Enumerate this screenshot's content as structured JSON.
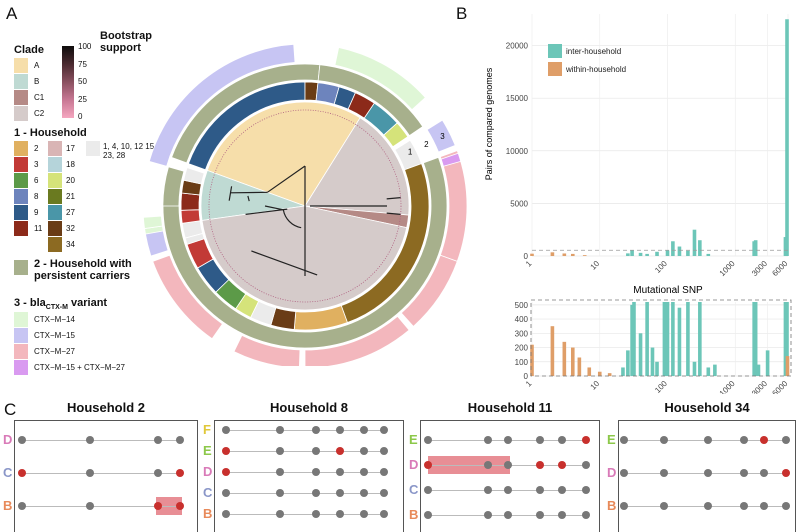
{
  "panels": {
    "a": "A",
    "b": "B",
    "c": "C"
  },
  "legend": {
    "clade_title": "Clade",
    "clades": [
      {
        "label": "A",
        "color": "#f6deaa"
      },
      {
        "label": "B",
        "color": "#bfdad3"
      },
      {
        "label": "C1",
        "color": "#b58a86"
      },
      {
        "label": "C2",
        "color": "#d5cbca"
      }
    ],
    "bootstrap_title": "Bootstrap support",
    "bootstrap_ticks": [
      "100",
      "75",
      "50",
      "25",
      "0"
    ],
    "household_title": "1 - Household",
    "households_left": [
      {
        "label": "2",
        "color": "#e0b060"
      },
      {
        "label": "3",
        "color": "#c23a36"
      },
      {
        "label": "6",
        "color": "#5c9a48"
      },
      {
        "label": "8",
        "color": "#6d84bd"
      },
      {
        "label": "9",
        "color": "#2e5a88"
      },
      {
        "label": "11",
        "color": "#8c2a1a"
      }
    ],
    "households_right": [
      {
        "label": "17",
        "color": "#d9b5b5"
      },
      {
        "label": "18",
        "color": "#b5d4da"
      },
      {
        "label": "20",
        "color": "#d5e37a"
      },
      {
        "label": "21",
        "color": "#6a7a20"
      },
      {
        "label": "27",
        "color": "#4a96a8"
      },
      {
        "label": "32",
        "color": "#6a3c16"
      },
      {
        "label": "34",
        "color": "#8c6a22"
      }
    ],
    "household_other": {
      "label": "1, 4, 10, 12 15, 23, 28",
      "color": "#ebebeb"
    },
    "persistent_label": "2 - Household with persistent carriers",
    "persistent_color": "#a7b08c",
    "variant_title": "3 - bla",
    "variant_sub": "CTX-M",
    "variant_title_tail": " variant",
    "variants": [
      {
        "label": "CTX−M−14",
        "color": "#dff6d6"
      },
      {
        "label": "CTX−M−15",
        "color": "#c7c5f3"
      },
      {
        "label": "CTX−M−27",
        "color": "#f3b7bd"
      },
      {
        "label": "CTX−M−15 + CTX−M−27",
        "color": "#d99af0"
      }
    ],
    "ring_labels": [
      "1",
      "2",
      "3"
    ]
  },
  "chart_data": [
    {
      "type": "bar",
      "title": "",
      "xlabel": "Mutational SNP",
      "ylabel": "Pairs of compared genomes",
      "x_scale": "log",
      "x_ticks": [
        "1",
        "10",
        "100",
        "1000",
        "3000",
        "6000"
      ],
      "y_ticks": [
        "0",
        "5000",
        "10000",
        "15000",
        "20000"
      ],
      "ylim": [
        0,
        23000
      ],
      "legend_position": "top-left",
      "series": [
        {
          "name": "inter-household",
          "color": "#6cc6b8",
          "points": [
            [
              26,
              250
            ],
            [
              30,
              550
            ],
            [
              40,
              300
            ],
            [
              50,
              200
            ],
            [
              70,
              400
            ],
            [
              100,
              520
            ],
            [
              120,
              1400
            ],
            [
              150,
              900
            ],
            [
              200,
              500
            ],
            [
              250,
              2500
            ],
            [
              300,
              1500
            ],
            [
              400,
              200
            ],
            [
              1900,
              1400
            ],
            [
              2000,
              1500
            ],
            [
              5500,
              1800
            ],
            [
              5800,
              22500
            ]
          ]
        },
        {
          "name": "within-household",
          "color": "#df9e68",
          "points": [
            [
              1,
              220
            ],
            [
              2,
              350
            ],
            [
              3,
              240
            ],
            [
              4,
              200
            ],
            [
              6,
              80
            ]
          ]
        }
      ]
    },
    {
      "type": "bar",
      "title": "",
      "xlabel": "",
      "ylabel": "",
      "x_scale": "log",
      "x_ticks": [
        "1",
        "10",
        "100",
        "1000",
        "3000",
        "6000"
      ],
      "y_ticks": [
        "0",
        "100",
        "200",
        "300",
        "400",
        "500"
      ],
      "ylim": [
        0,
        520
      ],
      "series": [
        {
          "name": "inter-household",
          "color": "#6cc6b8",
          "points": [
            [
              22,
              60
            ],
            [
              26,
              180
            ],
            [
              30,
              500
            ],
            [
              32,
              520
            ],
            [
              40,
              300
            ],
            [
              50,
              520
            ],
            [
              60,
              200
            ],
            [
              70,
              100
            ],
            [
              90,
              520
            ],
            [
              100,
              520
            ],
            [
              120,
              520
            ],
            [
              150,
              480
            ],
            [
              200,
              520
            ],
            [
              250,
              100
            ],
            [
              300,
              520
            ],
            [
              400,
              60
            ],
            [
              500,
              80
            ],
            [
              1900,
              520
            ],
            [
              2000,
              520
            ],
            [
              2200,
              80
            ],
            [
              3000,
              180
            ],
            [
              5500,
              520
            ],
            [
              5800,
              520
            ]
          ]
        },
        {
          "name": "within-household",
          "color": "#df9e68",
          "points": [
            [
              1,
              220
            ],
            [
              2,
              350
            ],
            [
              3,
              240
            ],
            [
              4,
              200
            ],
            [
              5,
              130
            ],
            [
              7,
              60
            ],
            [
              10,
              30
            ],
            [
              14,
              20
            ],
            [
              5900,
              140
            ]
          ]
        }
      ]
    }
  ],
  "households": [
    {
      "title": "Household 2",
      "rows": [
        "D",
        "C",
        "B"
      ]
    },
    {
      "title": "Household 8",
      "rows": [
        "F",
        "E",
        "D",
        "C",
        "B"
      ]
    },
    {
      "title": "Household 11",
      "rows": [
        "E",
        "D",
        "C",
        "B"
      ]
    },
    {
      "title": "Household 34",
      "rows": [
        "E",
        "D",
        "B"
      ]
    }
  ],
  "letter_colors": {
    "B": "#e88a5a",
    "C": "#8a96c8",
    "D": "#d97ab8",
    "E": "#8cc84a",
    "F": "#e0c83a"
  }
}
